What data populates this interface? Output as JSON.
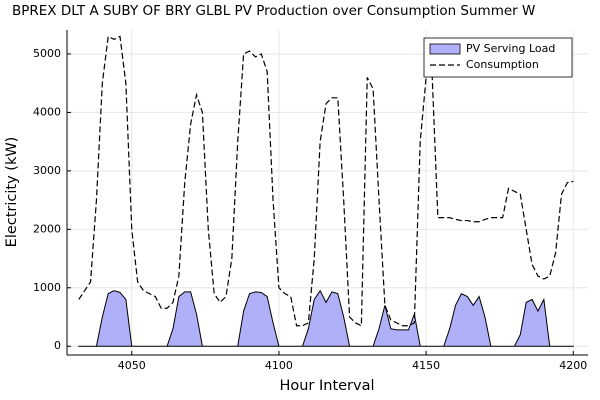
{
  "chart_data": {
    "type": "area_line",
    "title": "BPREX DLT A SUBY OF BRY GLBL PV Production over Consumption Summer W",
    "x_label": "Hour Interval",
    "y_label": "Electricity (kW)",
    "x": [
      4032,
      4034,
      4036,
      4038,
      4040,
      4042,
      4044,
      4046,
      4048,
      4050,
      4052,
      4054,
      4056,
      4058,
      4060,
      4062,
      4064,
      4066,
      4068,
      4070,
      4072,
      4074,
      4076,
      4078,
      4080,
      4082,
      4084,
      4086,
      4088,
      4090,
      4092,
      4094,
      4096,
      4098,
      4100,
      4102,
      4104,
      4106,
      4108,
      4110,
      4112,
      4114,
      4116,
      4118,
      4120,
      4122,
      4124,
      4126,
      4128,
      4130,
      4132,
      4134,
      4136,
      4138,
      4140,
      4142,
      4144,
      4146,
      4148,
      4150,
      4152,
      4154,
      4156,
      4158,
      4160,
      4162,
      4164,
      4166,
      4168,
      4170,
      4172,
      4174,
      4176,
      4178,
      4180,
      4182,
      4184,
      4186,
      4188,
      4190,
      4192,
      4194,
      4196,
      4198,
      4200
    ],
    "series": [
      {
        "name": "PV Serving Load",
        "kind": "area",
        "color": "#b0b0f8",
        "values": [
          0,
          0,
          0,
          0,
          500,
          900,
          950,
          920,
          800,
          0,
          0,
          0,
          0,
          0,
          0,
          0,
          300,
          850,
          930,
          930,
          550,
          0,
          0,
          0,
          0,
          0,
          0,
          0,
          600,
          900,
          930,
          920,
          850,
          400,
          0,
          0,
          0,
          0,
          0,
          300,
          800,
          950,
          750,
          930,
          900,
          500,
          0,
          0,
          0,
          0,
          0,
          300,
          700,
          300,
          280,
          280,
          280,
          550,
          0,
          0,
          0,
          0,
          0,
          300,
          700,
          900,
          850,
          700,
          850,
          500,
          0,
          0,
          0,
          0,
          0,
          200,
          750,
          800,
          600,
          800,
          0,
          0,
          0,
          0,
          0
        ]
      },
      {
        "name": "Consumption",
        "kind": "dashed",
        "color": "#000000",
        "values": [
          800,
          950,
          1100,
          2500,
          4500,
          5300,
          5250,
          5300,
          4500,
          2000,
          1100,
          950,
          900,
          850,
          650,
          650,
          750,
          1200,
          2800,
          3800,
          4300,
          4000,
          2000,
          900,
          750,
          850,
          1500,
          3500,
          5000,
          5050,
          4950,
          5000,
          4700,
          2500,
          1000,
          900,
          850,
          350,
          350,
          400,
          1500,
          3500,
          4150,
          4250,
          4250,
          2500,
          500,
          400,
          350,
          4600,
          4400,
          2500,
          700,
          450,
          400,
          350,
          350,
          400,
          3500,
          4600,
          4700,
          2200,
          2200,
          2200,
          2170,
          2150,
          2150,
          2130,
          2130,
          2170,
          2200,
          2200,
          2200,
          2700,
          2650,
          2600,
          2000,
          1400,
          1200,
          1150,
          1200,
          1600,
          2600,
          2800,
          2820
        ]
      }
    ],
    "xlim": [
      4028,
      4205
    ],
    "ylim": [
      -150,
      5410
    ],
    "xticks": [
      4050,
      4100,
      4150,
      4200
    ],
    "yticks": [
      0,
      1000,
      2000,
      3000,
      4000,
      5000
    ],
    "grid": true,
    "legend": "top-right"
  }
}
